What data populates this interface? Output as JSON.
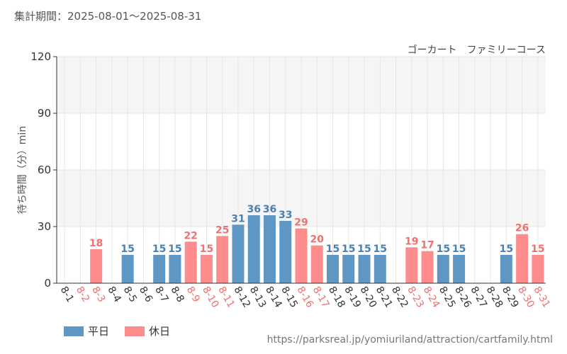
{
  "header": {
    "period_label": "集計期間：2025-08-01～2025-08-31"
  },
  "source_url": "https://parksreal.jp/yomiuriland/attraction/cartfamily.html",
  "colors": {
    "weekday": "#5f97c4",
    "holiday": "#ff8c8c",
    "weekday_label": "#4a7fae",
    "holiday_label": "#f07070",
    "band_alt": "#f5f5f5",
    "grid": "#e6e6e6"
  },
  "chart_data": {
    "type": "bar",
    "title": "ゴーカート　ファミリーコース",
    "ylabel": "待ち時間（分）min",
    "xlabel": "",
    "ylim": [
      0,
      120
    ],
    "yticks": [
      0,
      30,
      60,
      90,
      120
    ],
    "grid": true,
    "legend_position": "bottom-left",
    "categories": [
      "8-1",
      "8-2",
      "8-3",
      "8-4",
      "8-5",
      "8-6",
      "8-7",
      "8-8",
      "8-9",
      "8-10",
      "8-11",
      "8-12",
      "8-13",
      "8-14",
      "8-15",
      "8-16",
      "8-17",
      "8-18",
      "8-19",
      "8-20",
      "8-21",
      "8-22",
      "8-23",
      "8-24",
      "8-25",
      "8-26",
      "8-27",
      "8-28",
      "8-29",
      "8-30",
      "8-31"
    ],
    "values": [
      null,
      null,
      18,
      null,
      15,
      null,
      15,
      15,
      22,
      15,
      25,
      31,
      36,
      36,
      33,
      29,
      20,
      15,
      15,
      15,
      15,
      null,
      19,
      17,
      15,
      15,
      null,
      null,
      15,
      26,
      15
    ],
    "day_type": [
      "weekday",
      "holiday",
      "holiday",
      "weekday",
      "weekday",
      "weekday",
      "weekday",
      "weekday",
      "holiday",
      "holiday",
      "holiday",
      "weekday",
      "weekday",
      "weekday",
      "weekday",
      "holiday",
      "holiday",
      "weekday",
      "weekday",
      "weekday",
      "weekday",
      "weekday",
      "holiday",
      "holiday",
      "weekday",
      "weekday",
      "weekday",
      "weekday",
      "weekday",
      "holiday",
      "holiday"
    ],
    "series": [
      {
        "key": "weekday",
        "name": "平日"
      },
      {
        "key": "holiday",
        "name": "休日"
      }
    ]
  }
}
